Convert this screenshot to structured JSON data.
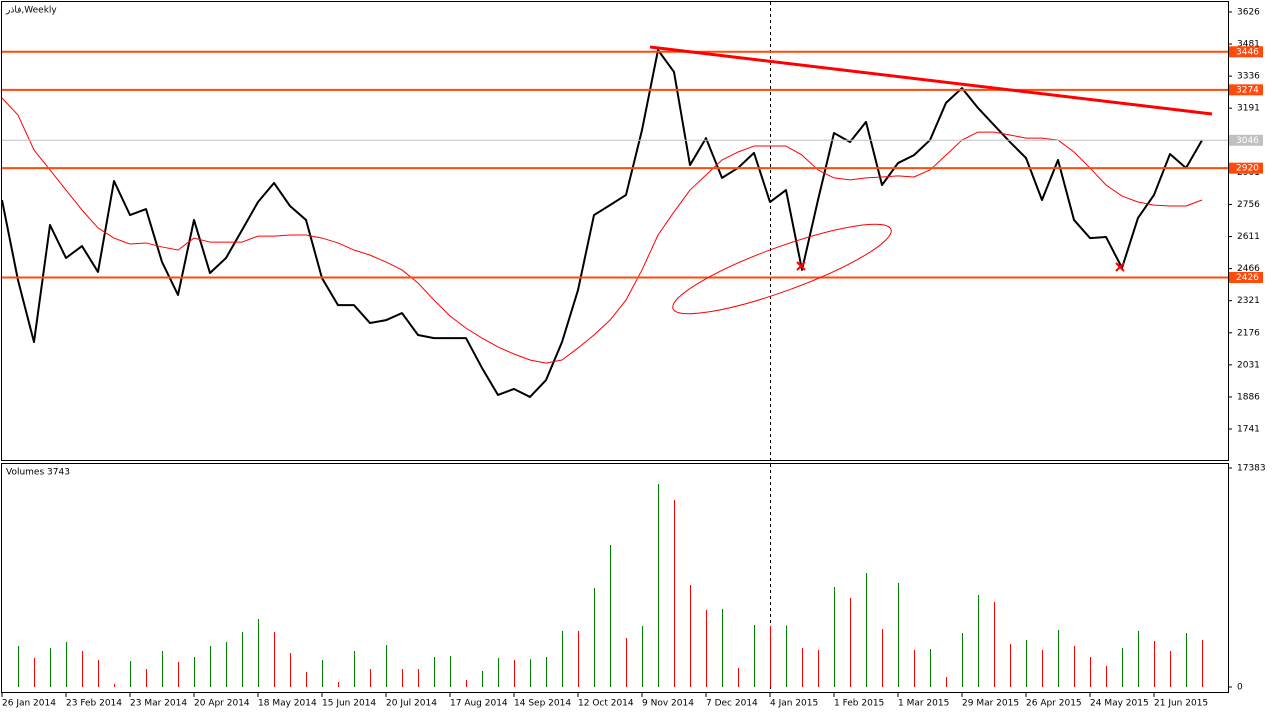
{
  "chart_data": [
    {
      "type": "line",
      "title": "فاذر,Weekly",
      "categories": [
        "26 Jan 2014",
        null,
        null,
        null,
        "23 Feb 2014",
        null,
        null,
        null,
        "23 Mar 2014",
        null,
        null,
        null,
        "20 Apr 2014",
        null,
        null,
        null,
        "18 May 2014",
        null,
        null,
        null,
        "15 Jun 2014",
        null,
        null,
        null,
        "20 Jul 2014",
        null,
        null,
        null,
        "17 Aug 2014",
        null,
        null,
        null,
        "14 Sep 2014",
        null,
        null,
        null,
        "12 Oct 2014",
        null,
        null,
        null,
        "9 Nov 2014",
        null,
        null,
        null,
        "7 Dec 2014",
        null,
        null,
        null,
        "4 Jan 2015",
        null,
        null,
        null,
        "1 Feb 2015",
        null,
        null,
        null,
        "1 Mar 2015",
        null,
        null,
        null,
        "29 Mar 2015",
        null,
        null,
        null,
        "26 Apr 2015",
        null,
        null,
        null,
        "24 May 2015",
        null,
        null,
        null,
        "21 Jun 2015",
        null,
        null,
        null
      ],
      "series": [
        {
          "color": "#000000",
          "values": [
            2776,
            2414,
            2134,
            2663,
            2514,
            2568,
            2451,
            2862,
            2708,
            2735,
            2496,
            2347,
            2686,
            2446,
            2514,
            2640,
            2767,
            2853,
            2749,
            2686,
            2423,
            2301,
            2301,
            2220,
            2233,
            2265,
            2166,
            2152,
            2152,
            2152,
            2017,
            1895,
            1922,
            1886,
            1962,
            2134,
            2369,
            2708,
            2753,
            2799,
            3092,
            3454,
            3355,
            2934,
            3056,
            2876,
            2921,
            2989,
            2767,
            2821,
            2460,
            2776,
            3079,
            3038,
            3129,
            2844,
            2943,
            2979,
            3047,
            3215,
            3282,
            3192,
            3115,
            3038,
            2966,
            2776,
            2957,
            2686,
            2604,
            2609,
            2469,
            2695,
            2799,
            2984,
            2921,
            3046
          ]
        },
        {
          "color": "#ff0000",
          "values": [
            3237,
            3160,
            3002,
            2912,
            2821,
            2731,
            2650,
            2604,
            2577,
            2582,
            2564,
            2550,
            2604,
            2586,
            2586,
            2586,
            2613,
            2613,
            2618,
            2618,
            2604,
            2582,
            2550,
            2527,
            2496,
            2460,
            2401,
            2324,
            2252,
            2197,
            2152,
            2112,
            2080,
            2053,
            2039,
            2053,
            2107,
            2166,
            2233,
            2324,
            2460,
            2618,
            2722,
            2821,
            2889,
            2957,
            2993,
            3020,
            3020,
            3020,
            2979,
            2912,
            2876,
            2867,
            2876,
            2880,
            2885,
            2880,
            2912,
            2979,
            3047,
            3083,
            3083,
            3070,
            3056,
            3056,
            3047,
            2993,
            2921,
            2844,
            2794,
            2767,
            2753,
            2749,
            2749,
            2776
          ]
        }
      ],
      "ylim": [
        1601,
        3671
      ],
      "yticks": [
        3626,
        3481,
        3336,
        3191,
        3046,
        2901,
        2756,
        2611,
        2466,
        2321,
        2176,
        2031,
        1886,
        1741
      ],
      "levels": [
        3446,
        3274,
        2920,
        2426
      ],
      "level_color": "#ff4a0a",
      "last_price": 3046,
      "last_price_color": "#c0c0c0"
    },
    {
      "type": "bar",
      "title": "Volumes 3743",
      "values": [
        null,
        3254,
        2302,
        3095,
        3571,
        2857,
        2143,
        238,
        2063,
        1429,
        2857,
        1984,
        2381,
        3254,
        3571,
        4365,
        5397,
        4365,
        2698,
        1190,
        2143,
        397,
        2857,
        1429,
        3333,
        1429,
        1429,
        2381,
        2450,
        556,
        1270,
        2302,
        2143,
        2200,
        2381,
        4444,
        4444,
        7857,
        11270,
        3889,
        4841,
        16111,
        14841,
        8095,
        6111,
        6200,
        1508,
        4921,
        4841,
        4880,
        3095,
        2937,
        7937,
        7063,
        9048,
        4603,
        8254,
        2937,
        3016,
        794,
        4286,
        7302,
        6746,
        3413,
        3730,
        2937,
        4524,
        3254,
        2381,
        1667,
        3095,
        4444,
        3651,
        2857,
        4286,
        3743
      ],
      "up_color": "#008000",
      "down_color": "#ff0000",
      "ylim": [
        0,
        17383
      ],
      "yticks": [
        0,
        17383
      ]
    }
  ]
}
